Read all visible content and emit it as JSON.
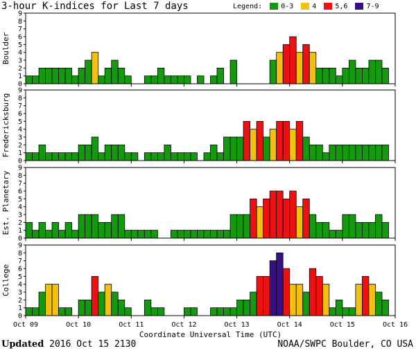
{
  "header": {
    "title": "3-hour K-indices for Last 7 days"
  },
  "legend": {
    "title": "Legend:",
    "items": [
      {
        "label": "0-3",
        "color": "#139a0d"
      },
      {
        "label": "4",
        "color": "#f2c00e"
      },
      {
        "label": "5,6",
        "color": "#ee1111"
      },
      {
        "label": "7-9",
        "color": "#3a0f86"
      }
    ]
  },
  "footer": {
    "updated_label": "Updated",
    "updated_value": "2016 Oct 15 2130",
    "source": "NOAA/SWPC Boulder, CO USA"
  },
  "chart_data": [
    {
      "type": "bar",
      "ylabel": "Boulder",
      "ylim": [
        0,
        9
      ],
      "yticks": [
        "0",
        "1",
        "2",
        "3",
        "4",
        "5",
        "6",
        "7",
        "8",
        "9"
      ],
      "xlabel": "Coordinate Universal Time (UTC)",
      "xticks": [
        "Oct 09",
        "Oct 10",
        "Oct 11",
        "Oct 12",
        "Oct 13",
        "Oct 14",
        "Oct 15",
        "Oct 16"
      ],
      "values": [
        1,
        1,
        2,
        2,
        2,
        2,
        2,
        1,
        2,
        3,
        4,
        1,
        2,
        3,
        2,
        1,
        0,
        0,
        1,
        1,
        2,
        1,
        1,
        1,
        1,
        0,
        1,
        0,
        1,
        2,
        0,
        3,
        0,
        0,
        0,
        0,
        0,
        3,
        4,
        5,
        6,
        4,
        5,
        4,
        2,
        2,
        2,
        1,
        2,
        3,
        2,
        2,
        3,
        3,
        2,
        0
      ]
    },
    {
      "type": "bar",
      "ylabel": "Fredericksburg",
      "ylim": [
        0,
        9
      ],
      "yticks": [
        "0",
        "1",
        "2",
        "3",
        "4",
        "5",
        "6",
        "7",
        "8",
        "9"
      ],
      "xticks": [
        "Oct 09",
        "Oct 10",
        "Oct 11",
        "Oct 12",
        "Oct 13",
        "Oct 14",
        "Oct 15",
        "Oct 16"
      ],
      "values": [
        1,
        1,
        2,
        1,
        1,
        1,
        1,
        1,
        2,
        2,
        3,
        1,
        2,
        2,
        2,
        1,
        1,
        0,
        1,
        1,
        1,
        2,
        1,
        1,
        1,
        1,
        0,
        1,
        2,
        1,
        3,
        3,
        3,
        5,
        4,
        5,
        3,
        4,
        5,
        5,
        4,
        5,
        3,
        2,
        2,
        1,
        2,
        2,
        2,
        2,
        2,
        2,
        2,
        2,
        2,
        0
      ]
    },
    {
      "type": "bar",
      "ylabel": "Est. Planetary",
      "ylim": [
        0,
        9
      ],
      "yticks": [
        "0",
        "1",
        "2",
        "3",
        "4",
        "5",
        "6",
        "7",
        "8",
        "9"
      ],
      "xticks": [
        "Oct 09",
        "Oct 10",
        "Oct 11",
        "Oct 12",
        "Oct 13",
        "Oct 14",
        "Oct 15",
        "Oct 16"
      ],
      "values": [
        2,
        1,
        2,
        1,
        2,
        1,
        2,
        1,
        3,
        3,
        3,
        2,
        2,
        3,
        3,
        1,
        1,
        1,
        1,
        1,
        0,
        0,
        1,
        1,
        1,
        1,
        1,
        1,
        1,
        1,
        1,
        3,
        3,
        3,
        5,
        4,
        5,
        6,
        6,
        5,
        6,
        4,
        5,
        3,
        2,
        2,
        1,
        1,
        3,
        3,
        2,
        2,
        2,
        3,
        2,
        0
      ]
    },
    {
      "type": "bar",
      "ylabel": "College",
      "ylim": [
        0,
        9
      ],
      "yticks": [
        "0",
        "1",
        "2",
        "3",
        "4",
        "5",
        "6",
        "7",
        "8",
        "9"
      ],
      "xticks": [
        "Oct 09",
        "Oct 10",
        "Oct 11",
        "Oct 12",
        "Oct 13",
        "Oct 14",
        "Oct 15",
        "Oct 16"
      ],
      "values": [
        1,
        1,
        3,
        4,
        4,
        1,
        1,
        0,
        2,
        2,
        5,
        3,
        4,
        3,
        2,
        1,
        0,
        0,
        2,
        1,
        1,
        0,
        0,
        0,
        1,
        1,
        0,
        0,
        1,
        1,
        1,
        1,
        2,
        2,
        3,
        5,
        5,
        7,
        8,
        6,
        4,
        4,
        3,
        6,
        5,
        4,
        1,
        2,
        1,
        1,
        4,
        5,
        4,
        3,
        2,
        0
      ]
    }
  ]
}
